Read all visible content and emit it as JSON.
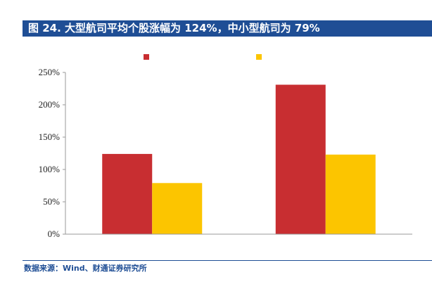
{
  "figure": {
    "title": "图 24. 大型航司平均个股涨幅为 124%，中小型航司为 79%",
    "source": "数据来源：Wind、财通证券研究所"
  },
  "chart_data": {
    "type": "bar",
    "categories": [
      "",
      ""
    ],
    "series": [
      {
        "color": "#c82e31",
        "values": [
          124,
          231
        ]
      },
      {
        "color": "#fcc500",
        "values": [
          79,
          123
        ]
      }
    ],
    "ylim": [
      0,
      250
    ],
    "yticks": [
      0,
      50,
      100,
      150,
      200,
      250
    ],
    "ytick_labels": [
      "0%",
      "50%",
      "100%",
      "150%",
      "200%",
      "250%"
    ],
    "legend_position": "top-center",
    "grid": false
  }
}
